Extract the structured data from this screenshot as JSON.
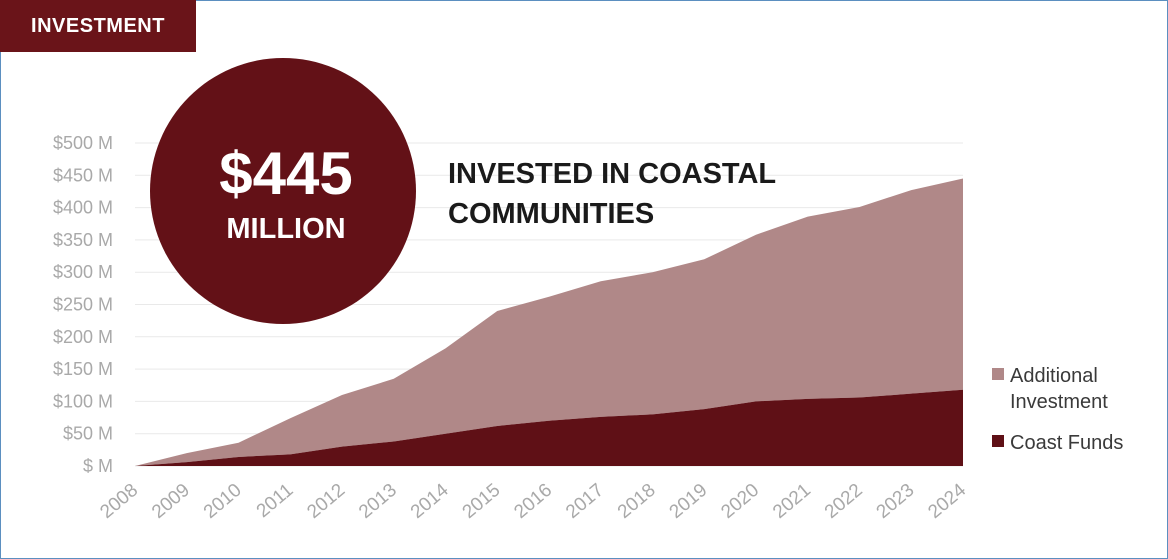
{
  "tag": "INVESTMENT",
  "callout": {
    "number": "$445",
    "unit": "MILLION"
  },
  "headline": [
    "INVESTED IN COASTAL",
    "COMMUNITIES"
  ],
  "colors": {
    "additional": "#b08888",
    "coast": "#5f1016",
    "circle": "#631117",
    "tag": "#6a1419",
    "grid": "#e9e9e9"
  },
  "chart_data": {
    "type": "area",
    "stacked": true,
    "x": [
      "2008",
      "2009",
      "2010",
      "2011",
      "2012",
      "2013",
      "2014",
      "2015",
      "2016",
      "2017",
      "2018",
      "2019",
      "2020",
      "2021",
      "2022",
      "2023",
      "2024"
    ],
    "series": [
      {
        "name": "Coast Funds",
        "values": [
          0,
          6,
          14,
          18,
          30,
          38,
          50,
          62,
          70,
          76,
          80,
          88,
          100,
          104,
          106,
          112,
          118
        ]
      },
      {
        "name": "Additional Investment",
        "values": [
          0,
          14,
          22,
          56,
          80,
          97,
          132,
          178,
          192,
          210,
          220,
          232,
          258,
          282,
          295,
          315,
          327
        ]
      }
    ],
    "totals": [
      0,
      20,
      36,
      74,
      110,
      135,
      182,
      240,
      262,
      286,
      300,
      320,
      358,
      386,
      401,
      427,
      445
    ],
    "yticks": [
      "$ M",
      "$50 M",
      "$100 M",
      "$150 M",
      "$200 M",
      "$250 M",
      "$300 M",
      "$350 M",
      "$400 M",
      "$450 M",
      "$500 M"
    ],
    "ylim": [
      0,
      500
    ],
    "grid": true,
    "legend_position": "right",
    "legend": [
      "Additional Investment",
      "Coast Funds"
    ]
  }
}
